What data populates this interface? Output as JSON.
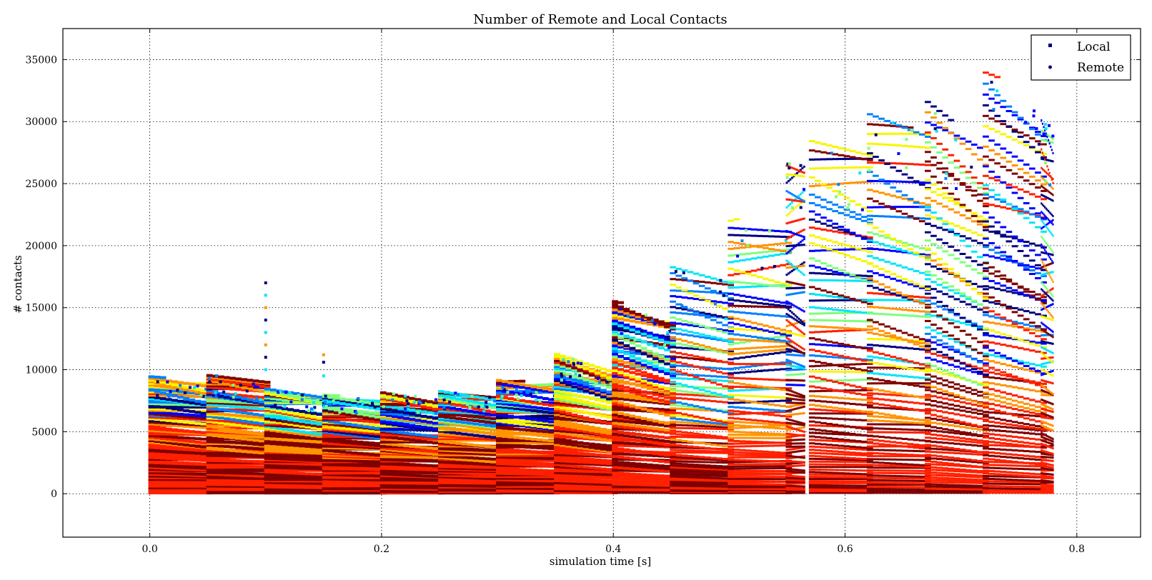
{
  "chart_data": {
    "type": "scatter",
    "title": "Number of Remote and Local Contacts",
    "xlabel": "simulation time [s]",
    "ylabel": "# contacts",
    "xlim": [
      -0.075,
      0.855
    ],
    "ylim": [
      -3500,
      37500
    ],
    "xticks": [
      0.0,
      0.2,
      0.4,
      0.6,
      0.8
    ],
    "xtick_labels": [
      "0.0",
      "0.2",
      "0.4",
      "0.6",
      "0.8"
    ],
    "yticks": [
      0,
      5000,
      10000,
      15000,
      20000,
      25000,
      30000,
      35000
    ],
    "ytick_labels": [
      "0",
      "5000",
      "10000",
      "15000",
      "20000",
      "25000",
      "30000",
      "35000"
    ],
    "grid": true,
    "legend_position": "top-right",
    "series": [
      {
        "name": "Local",
        "marker": "square"
      },
      {
        "name": "Remote",
        "marker": "circle"
      }
    ],
    "colormap": [
      "#00007f",
      "#0000ff",
      "#0080ff",
      "#00e5f8",
      "#7dff7a",
      "#f8f500",
      "#ff9400",
      "#ff2000",
      "#7f0000"
    ],
    "segments": [
      {
        "t0": 0.0,
        "t1": 0.05,
        "top0": 9500,
        "top1": 8900
      },
      {
        "t0": 0.05,
        "t1": 0.1,
        "top0": 9600,
        "top1": 9100
      },
      {
        "t0": 0.1,
        "t1": 0.15,
        "top0": 8500,
        "top1": 8000
      },
      {
        "t0": 0.15,
        "t1": 0.2,
        "top0": 8000,
        "top1": 7600
      },
      {
        "t0": 0.2,
        "t1": 0.25,
        "top0": 8200,
        "top1": 7700
      },
      {
        "t0": 0.25,
        "t1": 0.3,
        "top0": 8300,
        "top1": 7800
      },
      {
        "t0": 0.3,
        "t1": 0.35,
        "top0": 9200,
        "top1": 8900
      },
      {
        "t0": 0.35,
        "t1": 0.4,
        "top0": 11300,
        "top1": 10000
      },
      {
        "t0": 0.4,
        "t1": 0.45,
        "top0": 15600,
        "top1": 14000
      },
      {
        "t0": 0.45,
        "t1": 0.5,
        "top0": 18500,
        "top1": 17000
      },
      {
        "t0": 0.5,
        "t1": 0.55,
        "top0": 22300,
        "top1": 22000
      },
      {
        "t0": 0.55,
        "t1": 0.565,
        "top0": 26800,
        "top1": 26500
      },
      {
        "t0": 0.57,
        "t1": 0.62,
        "top0": 28800,
        "top1": 27400
      },
      {
        "t0": 0.62,
        "t1": 0.67,
        "top0": 31000,
        "top1": 29000
      },
      {
        "t0": 0.67,
        "t1": 0.72,
        "top0": 32000,
        "top1": 27500
      },
      {
        "t0": 0.72,
        "t1": 0.77,
        "top0": 34400,
        "top1": 30500
      },
      {
        "t0": 0.77,
        "t1": 0.78,
        "top0": 30500,
        "top1": 29500
      }
    ],
    "outliers": [
      {
        "x": 0.1,
        "y": 17000
      },
      {
        "x": 0.1,
        "y": 16000
      },
      {
        "x": 0.1,
        "y": 15000
      },
      {
        "x": 0.1,
        "y": 14000
      },
      {
        "x": 0.1,
        "y": 13000
      },
      {
        "x": 0.1,
        "y": 12000
      },
      {
        "x": 0.1,
        "y": 11000
      },
      {
        "x": 0.1,
        "y": 10000
      },
      {
        "x": 0.15,
        "y": 11200
      },
      {
        "x": 0.15,
        "y": 10600
      },
      {
        "x": 0.15,
        "y": 9500
      }
    ]
  }
}
